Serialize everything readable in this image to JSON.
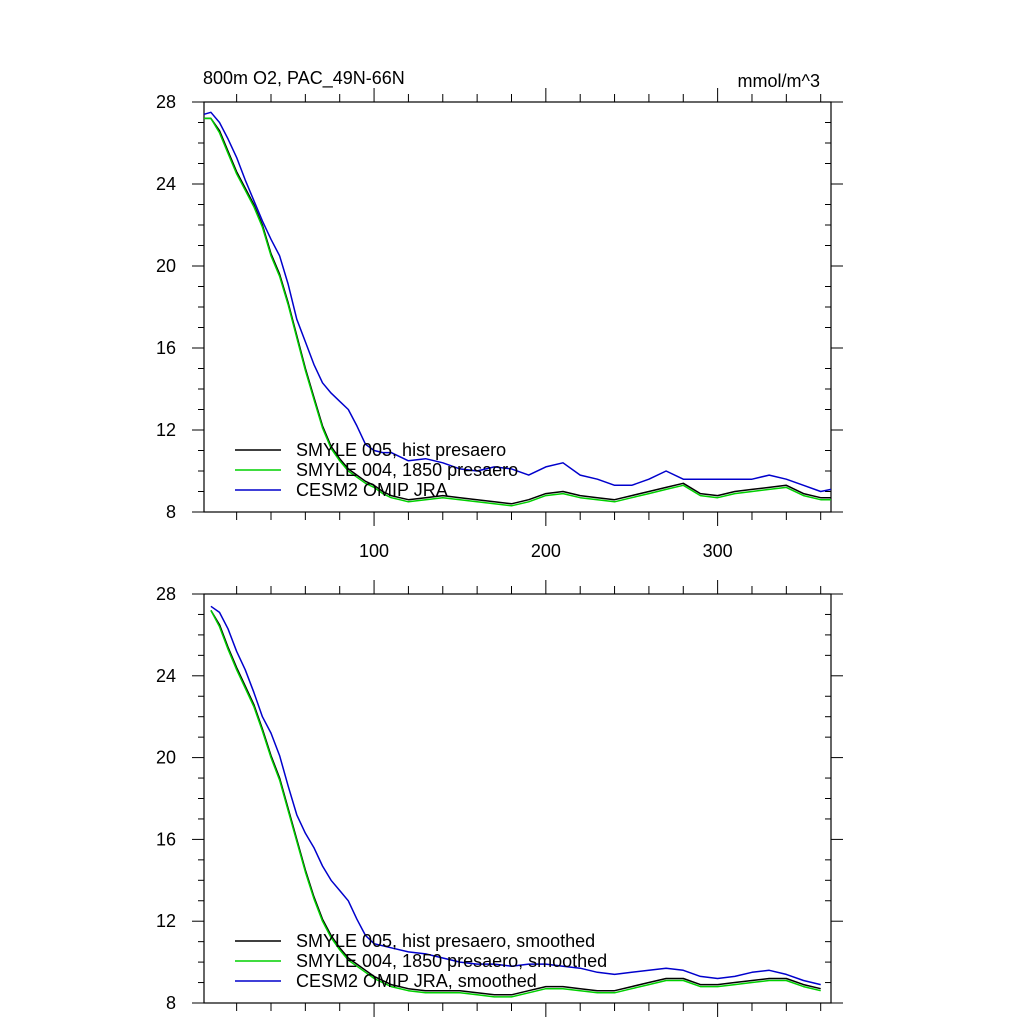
{
  "chart_data": [
    {
      "type": "line",
      "title": "800m O2, PAC_49N-66N",
      "units": "mmol/m^3",
      "xlabel": "",
      "ylabel": "",
      "xlim": [
        1,
        366
      ],
      "ylim": [
        8,
        28
      ],
      "xticks": [
        100,
        200,
        300
      ],
      "xtick_labels": [
        "100",
        "200",
        "300"
      ],
      "yticks": [
        8,
        12,
        16,
        20,
        24,
        28
      ],
      "ytick_labels": [
        "8",
        "12",
        "16",
        "20",
        "24",
        "28"
      ],
      "legend_position": "bottom-left",
      "series": [
        {
          "name": "SMYLE 005, hist presaero",
          "color": "#000000",
          "x": [
            1,
            5,
            10,
            15,
            20,
            25,
            30,
            35,
            40,
            45,
            50,
            55,
            60,
            65,
            70,
            75,
            80,
            85,
            90,
            95,
            100,
            105,
            110,
            115,
            120,
            130,
            140,
            150,
            160,
            170,
            180,
            190,
            200,
            210,
            220,
            230,
            240,
            250,
            260,
            270,
            280,
            290,
            300,
            310,
            320,
            330,
            340,
            350,
            360,
            366
          ],
          "y": [
            27.2,
            27.2,
            26.6,
            25.6,
            24.6,
            23.8,
            23.0,
            22.0,
            20.6,
            19.6,
            18.2,
            16.6,
            15.0,
            13.6,
            12.2,
            11.2,
            10.6,
            10.1,
            9.8,
            9.5,
            9.3,
            9.0,
            8.8,
            8.7,
            8.6,
            8.7,
            8.8,
            8.7,
            8.6,
            8.5,
            8.4,
            8.6,
            8.9,
            9.0,
            8.8,
            8.7,
            8.6,
            8.8,
            9.0,
            9.2,
            9.4,
            8.9,
            8.8,
            9.0,
            9.1,
            9.2,
            9.3,
            8.9,
            8.7,
            8.7
          ]
        },
        {
          "name": "SMYLE 004, 1850 presaero",
          "color": "#00d000",
          "x": [
            1,
            5,
            10,
            15,
            20,
            25,
            30,
            35,
            40,
            45,
            50,
            55,
            60,
            65,
            70,
            75,
            80,
            85,
            90,
            95,
            100,
            105,
            110,
            115,
            120,
            130,
            140,
            150,
            160,
            170,
            180,
            190,
            200,
            210,
            220,
            230,
            240,
            250,
            260,
            270,
            280,
            290,
            300,
            310,
            320,
            330,
            340,
            350,
            360,
            366
          ],
          "y": [
            27.2,
            27.2,
            26.5,
            25.5,
            24.5,
            23.7,
            22.9,
            21.9,
            20.5,
            19.5,
            18.1,
            16.5,
            14.9,
            13.5,
            12.1,
            11.1,
            10.5,
            10.0,
            9.7,
            9.4,
            9.2,
            8.9,
            8.7,
            8.6,
            8.5,
            8.6,
            8.7,
            8.6,
            8.5,
            8.4,
            8.3,
            8.5,
            8.8,
            8.9,
            8.7,
            8.6,
            8.5,
            8.7,
            8.9,
            9.1,
            9.3,
            8.8,
            8.7,
            8.9,
            9.0,
            9.1,
            9.2,
            8.8,
            8.6,
            8.6
          ]
        },
        {
          "name": "CESM2 OMIP JRA",
          "color": "#0000cc",
          "x": [
            1,
            5,
            10,
            15,
            20,
            25,
            30,
            35,
            40,
            45,
            50,
            55,
            60,
            65,
            70,
            75,
            80,
            85,
            90,
            95,
            100,
            105,
            110,
            115,
            120,
            130,
            140,
            150,
            160,
            170,
            180,
            190,
            200,
            210,
            220,
            230,
            240,
            250,
            260,
            270,
            280,
            290,
            300,
            310,
            320,
            330,
            340,
            350,
            360,
            366
          ],
          "y": [
            27.4,
            27.5,
            27.0,
            26.2,
            25.3,
            24.2,
            23.2,
            22.2,
            21.3,
            20.5,
            19.1,
            17.4,
            16.3,
            15.2,
            14.3,
            13.8,
            13.4,
            13.0,
            12.2,
            11.3,
            11.0,
            10.9,
            10.9,
            10.7,
            10.5,
            10.6,
            10.4,
            10.1,
            10.0,
            10.2,
            10.1,
            9.8,
            10.2,
            10.4,
            9.8,
            9.6,
            9.3,
            9.3,
            9.6,
            10.0,
            9.6,
            9.6,
            9.6,
            9.6,
            9.6,
            9.8,
            9.6,
            9.3,
            9.0,
            9.1
          ]
        }
      ]
    },
    {
      "type": "line",
      "title": "",
      "xlabel": "",
      "ylabel": "",
      "xlim": [
        1,
        366
      ],
      "ylim": [
        8,
        28
      ],
      "xticks": [
        100,
        200,
        300
      ],
      "yticks": [
        8,
        12,
        16,
        20,
        24,
        28
      ],
      "ytick_labels": [
        "8",
        "12",
        "16",
        "20",
        "24",
        "28"
      ],
      "legend_position": "bottom-left",
      "series": [
        {
          "name": "SMYLE 005, hist presaero, smoothed",
          "color": "#000000",
          "x": [
            5,
            10,
            15,
            20,
            25,
            30,
            35,
            40,
            45,
            50,
            55,
            60,
            65,
            70,
            75,
            80,
            85,
            90,
            95,
            100,
            110,
            120,
            130,
            140,
            150,
            160,
            170,
            180,
            190,
            200,
            210,
            220,
            230,
            240,
            250,
            260,
            270,
            280,
            290,
            300,
            310,
            320,
            330,
            340,
            350,
            360
          ],
          "y": [
            27.2,
            26.5,
            25.4,
            24.4,
            23.5,
            22.6,
            21.4,
            20.1,
            19.0,
            17.5,
            16.0,
            14.5,
            13.2,
            12.1,
            11.3,
            10.7,
            10.2,
            9.9,
            9.6,
            9.3,
            8.9,
            8.7,
            8.6,
            8.6,
            8.6,
            8.5,
            8.4,
            8.4,
            8.6,
            8.8,
            8.8,
            8.7,
            8.6,
            8.6,
            8.8,
            9.0,
            9.2,
            9.2,
            8.9,
            8.9,
            9.0,
            9.1,
            9.2,
            9.2,
            8.9,
            8.7
          ]
        },
        {
          "name": "SMYLE 004, 1850 presaero, smoothed",
          "color": "#00d000",
          "x": [
            5,
            10,
            15,
            20,
            25,
            30,
            35,
            40,
            45,
            50,
            55,
            60,
            65,
            70,
            75,
            80,
            85,
            90,
            95,
            100,
            110,
            120,
            130,
            140,
            150,
            160,
            170,
            180,
            190,
            200,
            210,
            220,
            230,
            240,
            250,
            260,
            270,
            280,
            290,
            300,
            310,
            320,
            330,
            340,
            350,
            360
          ],
          "y": [
            27.2,
            26.4,
            25.3,
            24.3,
            23.4,
            22.5,
            21.3,
            20.0,
            18.9,
            17.4,
            15.9,
            14.4,
            13.1,
            12.0,
            11.2,
            10.6,
            10.1,
            9.8,
            9.5,
            9.2,
            8.8,
            8.6,
            8.5,
            8.5,
            8.5,
            8.4,
            8.3,
            8.3,
            8.5,
            8.7,
            8.7,
            8.6,
            8.5,
            8.5,
            8.7,
            8.9,
            9.1,
            9.1,
            8.8,
            8.8,
            8.9,
            9.0,
            9.1,
            9.1,
            8.8,
            8.6
          ]
        },
        {
          "name": "CESM2 OMIP JRA, smoothed",
          "color": "#0000cc",
          "x": [
            5,
            10,
            15,
            20,
            25,
            30,
            35,
            40,
            45,
            50,
            55,
            60,
            65,
            70,
            75,
            80,
            85,
            90,
            95,
            100,
            110,
            120,
            130,
            140,
            150,
            160,
            170,
            180,
            190,
            200,
            210,
            220,
            230,
            240,
            250,
            260,
            270,
            280,
            290,
            300,
            310,
            320,
            330,
            340,
            350,
            360
          ],
          "y": [
            27.4,
            27.1,
            26.3,
            25.2,
            24.3,
            23.2,
            22.0,
            21.2,
            20.1,
            18.6,
            17.2,
            16.3,
            15.6,
            14.7,
            14.0,
            13.5,
            13.0,
            12.1,
            11.3,
            10.9,
            10.7,
            10.5,
            10.4,
            10.2,
            10.0,
            9.9,
            9.9,
            9.8,
            9.9,
            9.9,
            9.8,
            9.7,
            9.5,
            9.4,
            9.5,
            9.6,
            9.7,
            9.6,
            9.3,
            9.2,
            9.3,
            9.5,
            9.6,
            9.4,
            9.1,
            8.9
          ]
        }
      ]
    }
  ]
}
